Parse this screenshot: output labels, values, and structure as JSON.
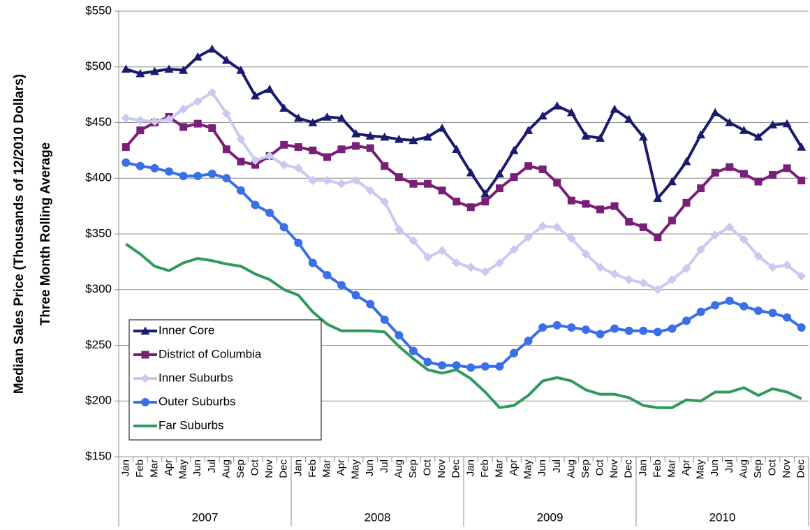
{
  "chart_data": {
    "type": "line",
    "ylabel": [
      "Median Sales Price (Thousands of 12/2010 Dollars)",
      "Three Month Rolling Average"
    ],
    "categories": [
      "Jan",
      "Feb",
      "Mar",
      "Apr",
      "May",
      "Jun",
      "Jul",
      "Aug",
      "Sep",
      "Oct",
      "Nov",
      "Dec",
      "Jan",
      "Feb",
      "Mar",
      "Apr",
      "May",
      "Jun",
      "Jul",
      "Aug",
      "Sep",
      "Oct",
      "Nov",
      "Dec",
      "Jan",
      "Feb",
      "Mar",
      "Apr",
      "May",
      "Jun",
      "Jul",
      "Aug",
      "Sep",
      "Oct",
      "Nov",
      "Dec",
      "Jan",
      "Feb",
      "Mar",
      "Apr",
      "May",
      "Jun",
      "Jul",
      "Aug",
      "Sep",
      "Oct",
      "Nov",
      "Dec"
    ],
    "year_groups": [
      "2007",
      "2008",
      "2009",
      "2010"
    ],
    "ylim": [
      150,
      550
    ],
    "yticks": [
      {
        "value": 150,
        "label": "$150"
      },
      {
        "value": 200,
        "label": "$200"
      },
      {
        "value": 250,
        "label": "$250"
      },
      {
        "value": 300,
        "label": "$300"
      },
      {
        "value": 350,
        "label": "$350"
      },
      {
        "value": 400,
        "label": "$400"
      },
      {
        "value": 450,
        "label": "$450"
      },
      {
        "value": 500,
        "label": "$500"
      },
      {
        "value": 550,
        "label": "$550"
      }
    ],
    "grid": true,
    "legend": "lower-left",
    "series": [
      {
        "name": "Inner Core",
        "color": "#1a1a6e",
        "marker": "triangle",
        "values": [
          498,
          494,
          496,
          498,
          497,
          509,
          516,
          506,
          497,
          474,
          480,
          463,
          454,
          450,
          455,
          454,
          440,
          438,
          437,
          435,
          434,
          437,
          445,
          426,
          405,
          386,
          404,
          425,
          443,
          456,
          465,
          459,
          438,
          436,
          462,
          453,
          437,
          382,
          397,
          415,
          439,
          459,
          450,
          443,
          437,
          448,
          449,
          428
        ]
      },
      {
        "name": "District of Columbia",
        "color": "#7a1f78",
        "marker": "square",
        "values": [
          428,
          443,
          450,
          455,
          446,
          449,
          445,
          426,
          415,
          412,
          420,
          430,
          428,
          425,
          419,
          426,
          429,
          427,
          411,
          401,
          395,
          395,
          389,
          379,
          374,
          379,
          391,
          401,
          411,
          408,
          396,
          380,
          377,
          372,
          375,
          361,
          356,
          347,
          362,
          378,
          391,
          405,
          410,
          404,
          397,
          403,
          409,
          398
        ]
      },
      {
        "name": "Inner Suburbs",
        "color": "#c9c9f2",
        "marker": "diamond",
        "values": [
          454,
          452,
          451,
          453,
          462,
          469,
          477,
          458,
          435,
          416,
          420,
          412,
          409,
          398,
          398,
          395,
          398,
          389,
          379,
          354,
          344,
          329,
          335,
          324,
          320,
          316,
          324,
          336,
          347,
          357,
          356,
          346,
          332,
          320,
          314,
          309,
          306,
          300,
          309,
          319,
          336,
          349,
          356,
          345,
          330,
          320,
          322,
          312
        ]
      },
      {
        "name": "Outer Suburbs",
        "color": "#3b6fe6",
        "marker": "circle",
        "values": [
          414,
          411,
          409,
          406,
          402,
          402,
          404,
          400,
          389,
          376,
          369,
          356,
          342,
          324,
          313,
          304,
          295,
          287,
          273,
          259,
          245,
          235,
          232,
          232,
          230,
          231,
          231,
          243,
          254,
          266,
          268,
          266,
          264,
          260,
          265,
          263,
          263,
          262,
          265,
          272,
          280,
          286,
          290,
          285,
          281,
          279,
          275,
          266
        ]
      },
      {
        "name": "Far Suburbs",
        "color": "#2f9a5f",
        "marker": "none",
        "values": [
          341,
          332,
          321,
          317,
          324,
          328,
          326,
          323,
          321,
          314,
          309,
          300,
          295,
          280,
          269,
          263,
          263,
          263,
          262,
          249,
          238,
          228,
          225,
          228,
          220,
          208,
          194,
          196,
          205,
          218,
          221,
          218,
          210,
          206,
          206,
          203,
          196,
          194,
          194,
          201,
          200,
          208,
          208,
          212,
          205,
          211,
          208,
          202
        ]
      }
    ]
  }
}
